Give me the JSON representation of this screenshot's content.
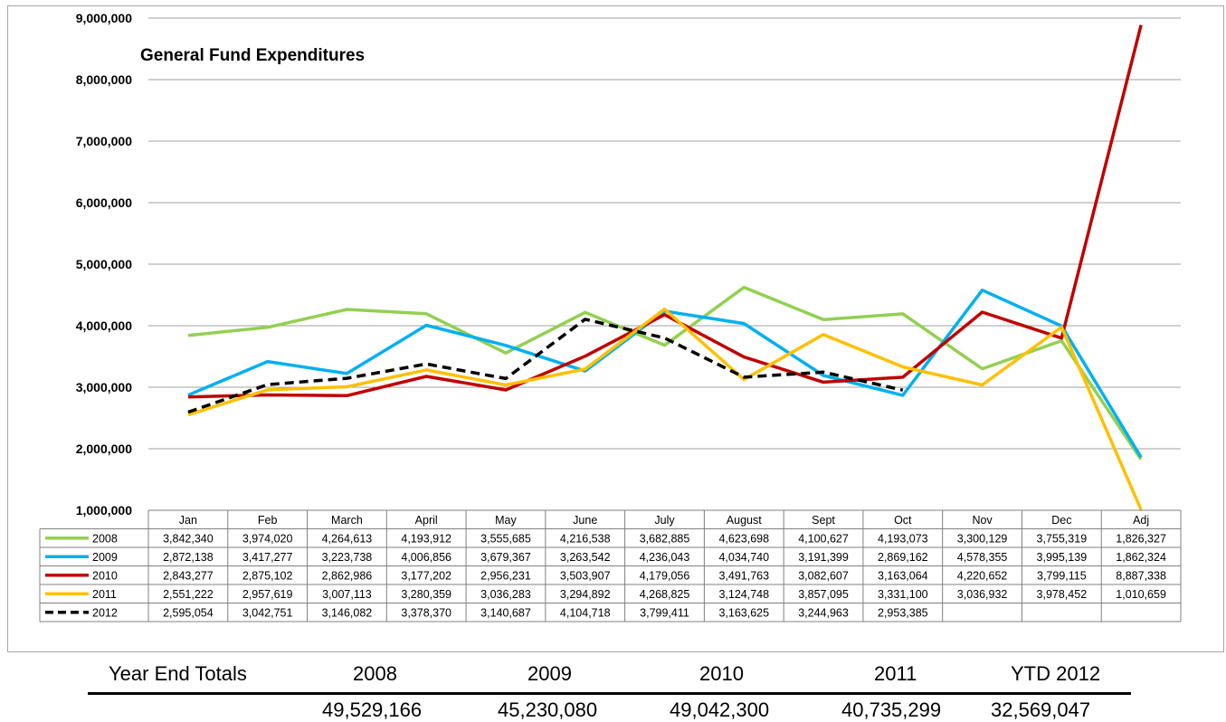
{
  "chart_data": {
    "type": "line",
    "title": "General Fund Expenditures",
    "categories": [
      "Jan",
      "Feb",
      "March",
      "April",
      "May",
      "June",
      "July",
      "August",
      "Sept",
      "Oct",
      "Nov",
      "Dec",
      "Adj"
    ],
    "ylim": [
      1000000,
      9000000
    ],
    "yticks": [
      1000000,
      2000000,
      3000000,
      4000000,
      5000000,
      6000000,
      7000000,
      8000000,
      9000000
    ],
    "ytick_labels": [
      "1,000,000",
      "2,000,000",
      "3,000,000",
      "4,000,000",
      "5,000,000",
      "6,000,000",
      "7,000,000",
      "8,000,000",
      "9,000,000"
    ],
    "grid": true,
    "legend": "data-table",
    "series": [
      {
        "name": "2008",
        "color": "#92d050",
        "dashed": false,
        "values": [
          3842340,
          3974020,
          4264613,
          4193912,
          3555685,
          4216538,
          3682885,
          4623698,
          4100627,
          4193073,
          3300129,
          3755319,
          1826327
        ],
        "labels": [
          "3,842,340",
          "3,974,020",
          "4,264,613",
          "4,193,912",
          "3,555,685",
          "4,216,538",
          "3,682,885",
          "4,623,698",
          "4,100,627",
          "4,193,073",
          "3,300,129",
          "3,755,319",
          "1,826,327"
        ]
      },
      {
        "name": "2009",
        "color": "#00b0f0",
        "dashed": false,
        "values": [
          2872138,
          3417277,
          3223738,
          4006856,
          3679367,
          3263542,
          4236043,
          4034740,
          3191399,
          2869162,
          4578355,
          3995139,
          1862324
        ],
        "labels": [
          "2,872,138",
          "3,417,277",
          "3,223,738",
          "4,006,856",
          "3,679,367",
          "3,263,542",
          "4,236,043",
          "4,034,740",
          "3,191,399",
          "2,869,162",
          "4,578,355",
          "3,995,139",
          "1,862,324"
        ]
      },
      {
        "name": "2010",
        "color": "#c00000",
        "dashed": false,
        "values": [
          2843277,
          2875102,
          2862986,
          3177202,
          2956231,
          3503907,
          4179056,
          3491763,
          3082607,
          3163064,
          4220652,
          3799115,
          8887338
        ],
        "labels": [
          "2,843,277",
          "2,875,102",
          "2,862,986",
          "3,177,202",
          "2,956,231",
          "3,503,907",
          "4,179,056",
          "3,491,763",
          "3,082,607",
          "3,163,064",
          "4,220,652",
          "3,799,115",
          "8,887,338"
        ]
      },
      {
        "name": "2011",
        "color": "#ffc000",
        "dashed": false,
        "values": [
          2551222,
          2957619,
          3007113,
          3280359,
          3036283,
          3294892,
          4268825,
          3124748,
          3857095,
          3331100,
          3036932,
          3978452,
          1010659
        ],
        "labels": [
          "2,551,222",
          "2,957,619",
          "3,007,113",
          "3,280,359",
          "3,036,283",
          "3,294,892",
          "4,268,825",
          "3,124,748",
          "3,857,095",
          "3,331,100",
          "3,036,932",
          "3,978,452",
          "1,010,659"
        ]
      },
      {
        "name": "2012",
        "color": "#000000",
        "dashed": true,
        "values": [
          2595054,
          3042751,
          3146082,
          3378370,
          3140687,
          4104718,
          3799411,
          3163625,
          3244963,
          2953385,
          null,
          null,
          null
        ],
        "labels": [
          "2,595,054",
          "3,042,751",
          "3,146,082",
          "3,378,370",
          "3,140,687",
          "4,104,718",
          "3,799,411",
          "3,163,625",
          "3,244,963",
          "2,953,385",
          "",
          "",
          ""
        ]
      }
    ]
  },
  "totals": {
    "heading": "Year End Totals",
    "years": [
      "2008",
      "2009",
      "2010",
      "2011",
      "YTD 2012"
    ],
    "values": [
      "49,529,166",
      "45,230,080",
      "49,042,300",
      "40,735,299",
      "32,569,047"
    ]
  }
}
